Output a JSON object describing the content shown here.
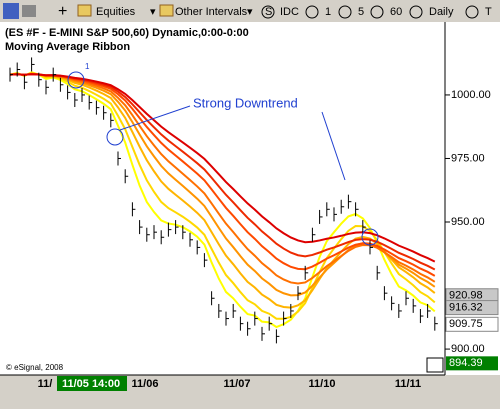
{
  "toolbar": {
    "items": [
      "Equities",
      "Other Intervals",
      "IDC",
      "1",
      "5",
      "60",
      "Daily",
      "T"
    ]
  },
  "chart_data": {
    "type": "ohlc",
    "title": "(ES #F - E-MINI S&P 500,60) Dynamic,0:00-0:00",
    "subtitle": "Moving Average Ribbon",
    "annotations": [
      "Strong Downtrend",
      "1"
    ],
    "copyright": "© eSignal, 2008",
    "x_labels": [
      "11/",
      "11/05 14:00",
      "11/06",
      "11/07",
      "11/10",
      "11/11"
    ],
    "ylim": [
      889.8,
      1028.7
    ],
    "yticks": [
      {
        "value": 1000,
        "label": "1000.00"
      },
      {
        "value": 975,
        "label": "975.00"
      },
      {
        "value": 950,
        "label": "950.00"
      },
      {
        "value": 900,
        "label": "900.00"
      }
    ],
    "price_labels": [
      {
        "value": 920.98,
        "label": "920.98"
      },
      {
        "value": 916.32,
        "label": "916.32"
      },
      {
        "value": 909.75,
        "label": "909.75"
      },
      {
        "value": 894.39,
        "label": "894.39"
      }
    ],
    "series": [
      {
        "name": "close",
        "color": "#000000",
        "values": [
          1008,
          1010,
          1005,
          1012,
          1006,
          1003,
          1008,
          1004,
          1001,
          998,
          1000,
          997,
          995,
          993,
          990,
          975,
          968,
          955,
          948,
          945,
          946,
          944,
          947,
          948,
          946,
          943,
          940,
          935,
          920,
          915,
          912,
          915,
          910,
          908,
          912,
          906,
          910,
          905,
          912,
          915,
          922,
          930,
          945,
          952,
          955,
          953,
          956,
          958,
          955,
          948,
          940,
          930,
          922,
          918,
          915,
          920,
          917,
          913,
          915,
          910
        ]
      }
    ]
  }
}
